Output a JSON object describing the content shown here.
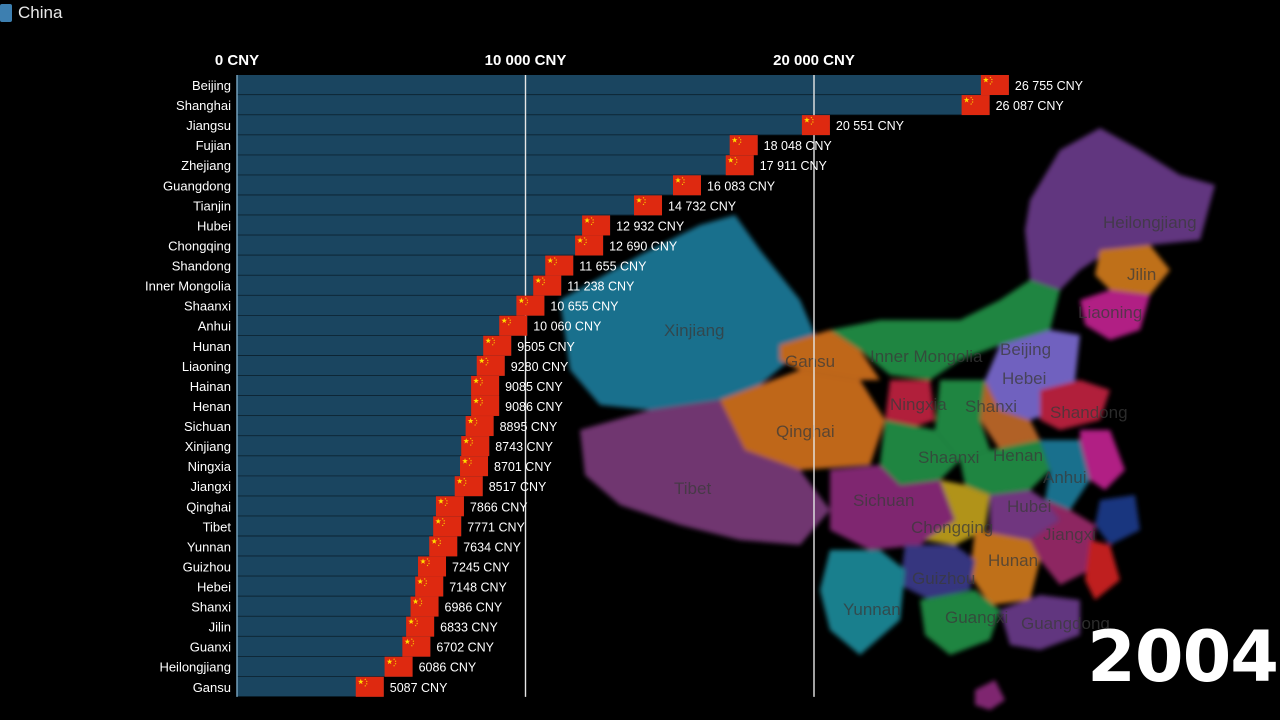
{
  "window": {
    "tab_label": "China"
  },
  "year": "2004",
  "map": {
    "region_labels": [
      "Heilongjiang",
      "Jilin",
      "Liaoning",
      "Beijing",
      "Hebei",
      "Inner Mongolia",
      "Xinjiang",
      "Gansu",
      "Qinghai",
      "Ningxia",
      "Shanxi",
      "Shandong",
      "Tibet",
      "Shaanxi",
      "Henan",
      "Anhui",
      "Sichuan",
      "Chongqing",
      "Hubei",
      "Jiangxi",
      "Hunan",
      "Guizhou",
      "Yunnan",
      "Guangxi",
      "Guangdong"
    ]
  },
  "chart_data": {
    "type": "bar",
    "orientation": "horizontal",
    "unit": "CNY",
    "axis_ticks": [
      "0 CNY",
      "10 000 CNY",
      "20 000 CNY"
    ],
    "axis_tick_values": [
      0,
      10000,
      20000
    ],
    "xlim": [
      0,
      30000
    ],
    "grid": true,
    "bar_color": "#1a4560",
    "flag_colors": {
      "red": "#de2910",
      "star": "#ffde00"
    },
    "categories": [
      "Beijing",
      "Shanghai",
      "Jiangsu",
      "Fujian",
      "Zhejiang",
      "Guangdong",
      "Tianjin",
      "Hubei",
      "Chongqing",
      "Shandong",
      "Inner Mongolia",
      "Shaanxi",
      "Anhui",
      "Hunan",
      "Liaoning",
      "Hainan",
      "Henan",
      "Sichuan",
      "Xinjiang",
      "Ningxia",
      "Jiangxi",
      "Qinghai",
      "Tibet",
      "Yunnan",
      "Guizhou",
      "Hebei",
      "Shanxi",
      "Jilin",
      "Guanxi",
      "Heilongjiang",
      "Gansu"
    ],
    "values": [
      26755,
      26087,
      20551,
      18048,
      17911,
      16083,
      14732,
      12932,
      12690,
      11655,
      11238,
      10655,
      10060,
      9505,
      9280,
      9085,
      9086,
      8895,
      8743,
      8701,
      8517,
      7866,
      7771,
      7634,
      7245,
      7148,
      6986,
      6833,
      6702,
      6086,
      5087
    ],
    "value_labels": [
      "26 755 CNY",
      "26 087 CNY",
      "20 551 CNY",
      "18 048 CNY",
      "17 911 CNY",
      "16 083 CNY",
      "14 732 CNY",
      "12 932 CNY",
      "12 690 CNY",
      "11 655 CNY",
      "11 238 CNY",
      "10 655 CNY",
      "10 060 CNY",
      "9505 CNY",
      "9280 CNY",
      "9085 CNY",
      "9086 CNY",
      "8895 CNY",
      "8743 CNY",
      "8701 CNY",
      "8517 CNY",
      "7866 CNY",
      "7771 CNY",
      "7634 CNY",
      "7245 CNY",
      "7148 CNY",
      "6986 CNY",
      "6833 CNY",
      "6702 CNY",
      "6086 CNY",
      "5087 CNY"
    ]
  }
}
